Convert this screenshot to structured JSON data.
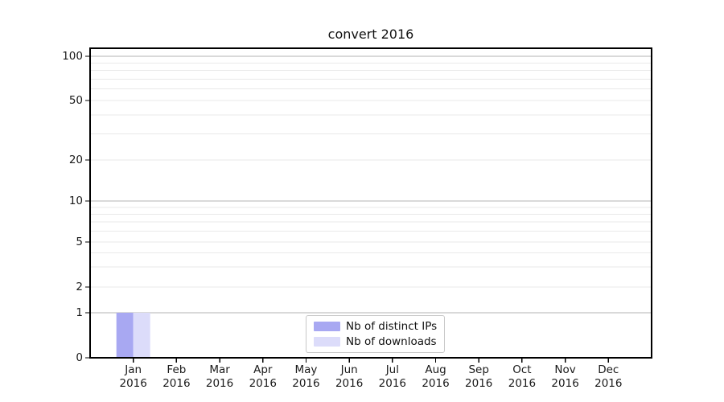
{
  "chart_data": {
    "type": "bar",
    "title": "convert 2016",
    "categories": [
      {
        "month": "Jan",
        "year": "2016"
      },
      {
        "month": "Feb",
        "year": "2016"
      },
      {
        "month": "Mar",
        "year": "2016"
      },
      {
        "month": "Apr",
        "year": "2016"
      },
      {
        "month": "May",
        "year": "2016"
      },
      {
        "month": "Jun",
        "year": "2016"
      },
      {
        "month": "Jul",
        "year": "2016"
      },
      {
        "month": "Aug",
        "year": "2016"
      },
      {
        "month": "Sep",
        "year": "2016"
      },
      {
        "month": "Oct",
        "year": "2016"
      },
      {
        "month": "Nov",
        "year": "2016"
      },
      {
        "month": "Dec",
        "year": "2016"
      }
    ],
    "series": [
      {
        "name": "Nb of distinct IPs",
        "color": "#a8a8f2",
        "values": [
          1,
          0,
          0,
          0,
          0,
          0,
          0,
          0,
          0,
          0,
          0,
          0
        ]
      },
      {
        "name": "Nb of downloads",
        "color": "#dcdcfa",
        "values": [
          1,
          0,
          0,
          0,
          0,
          0,
          0,
          0,
          0,
          0,
          0,
          0
        ]
      }
    ],
    "y_axis": {
      "scale": "log with 0 baseline",
      "tick_labels": [
        0,
        1,
        2,
        5,
        10,
        20,
        50,
        100
      ],
      "major_gridlines": [
        1,
        10,
        100
      ],
      "minor_gridlines": [
        2,
        3,
        4,
        5,
        6,
        7,
        8,
        9,
        20,
        30,
        40,
        50,
        60,
        70,
        80,
        90
      ],
      "ylim": [
        0,
        113
      ]
    },
    "grid": true,
    "legend_position": "lower center"
  },
  "colors": {
    "distinct_ips": "#a8a8f2",
    "downloads": "#dcdcfa",
    "major_grid": "#b3b3b3",
    "minor_grid": "#e9e9e9",
    "spine": "#000000",
    "text": "#1a1a1a",
    "legend_border": "#c8c8c8"
  }
}
